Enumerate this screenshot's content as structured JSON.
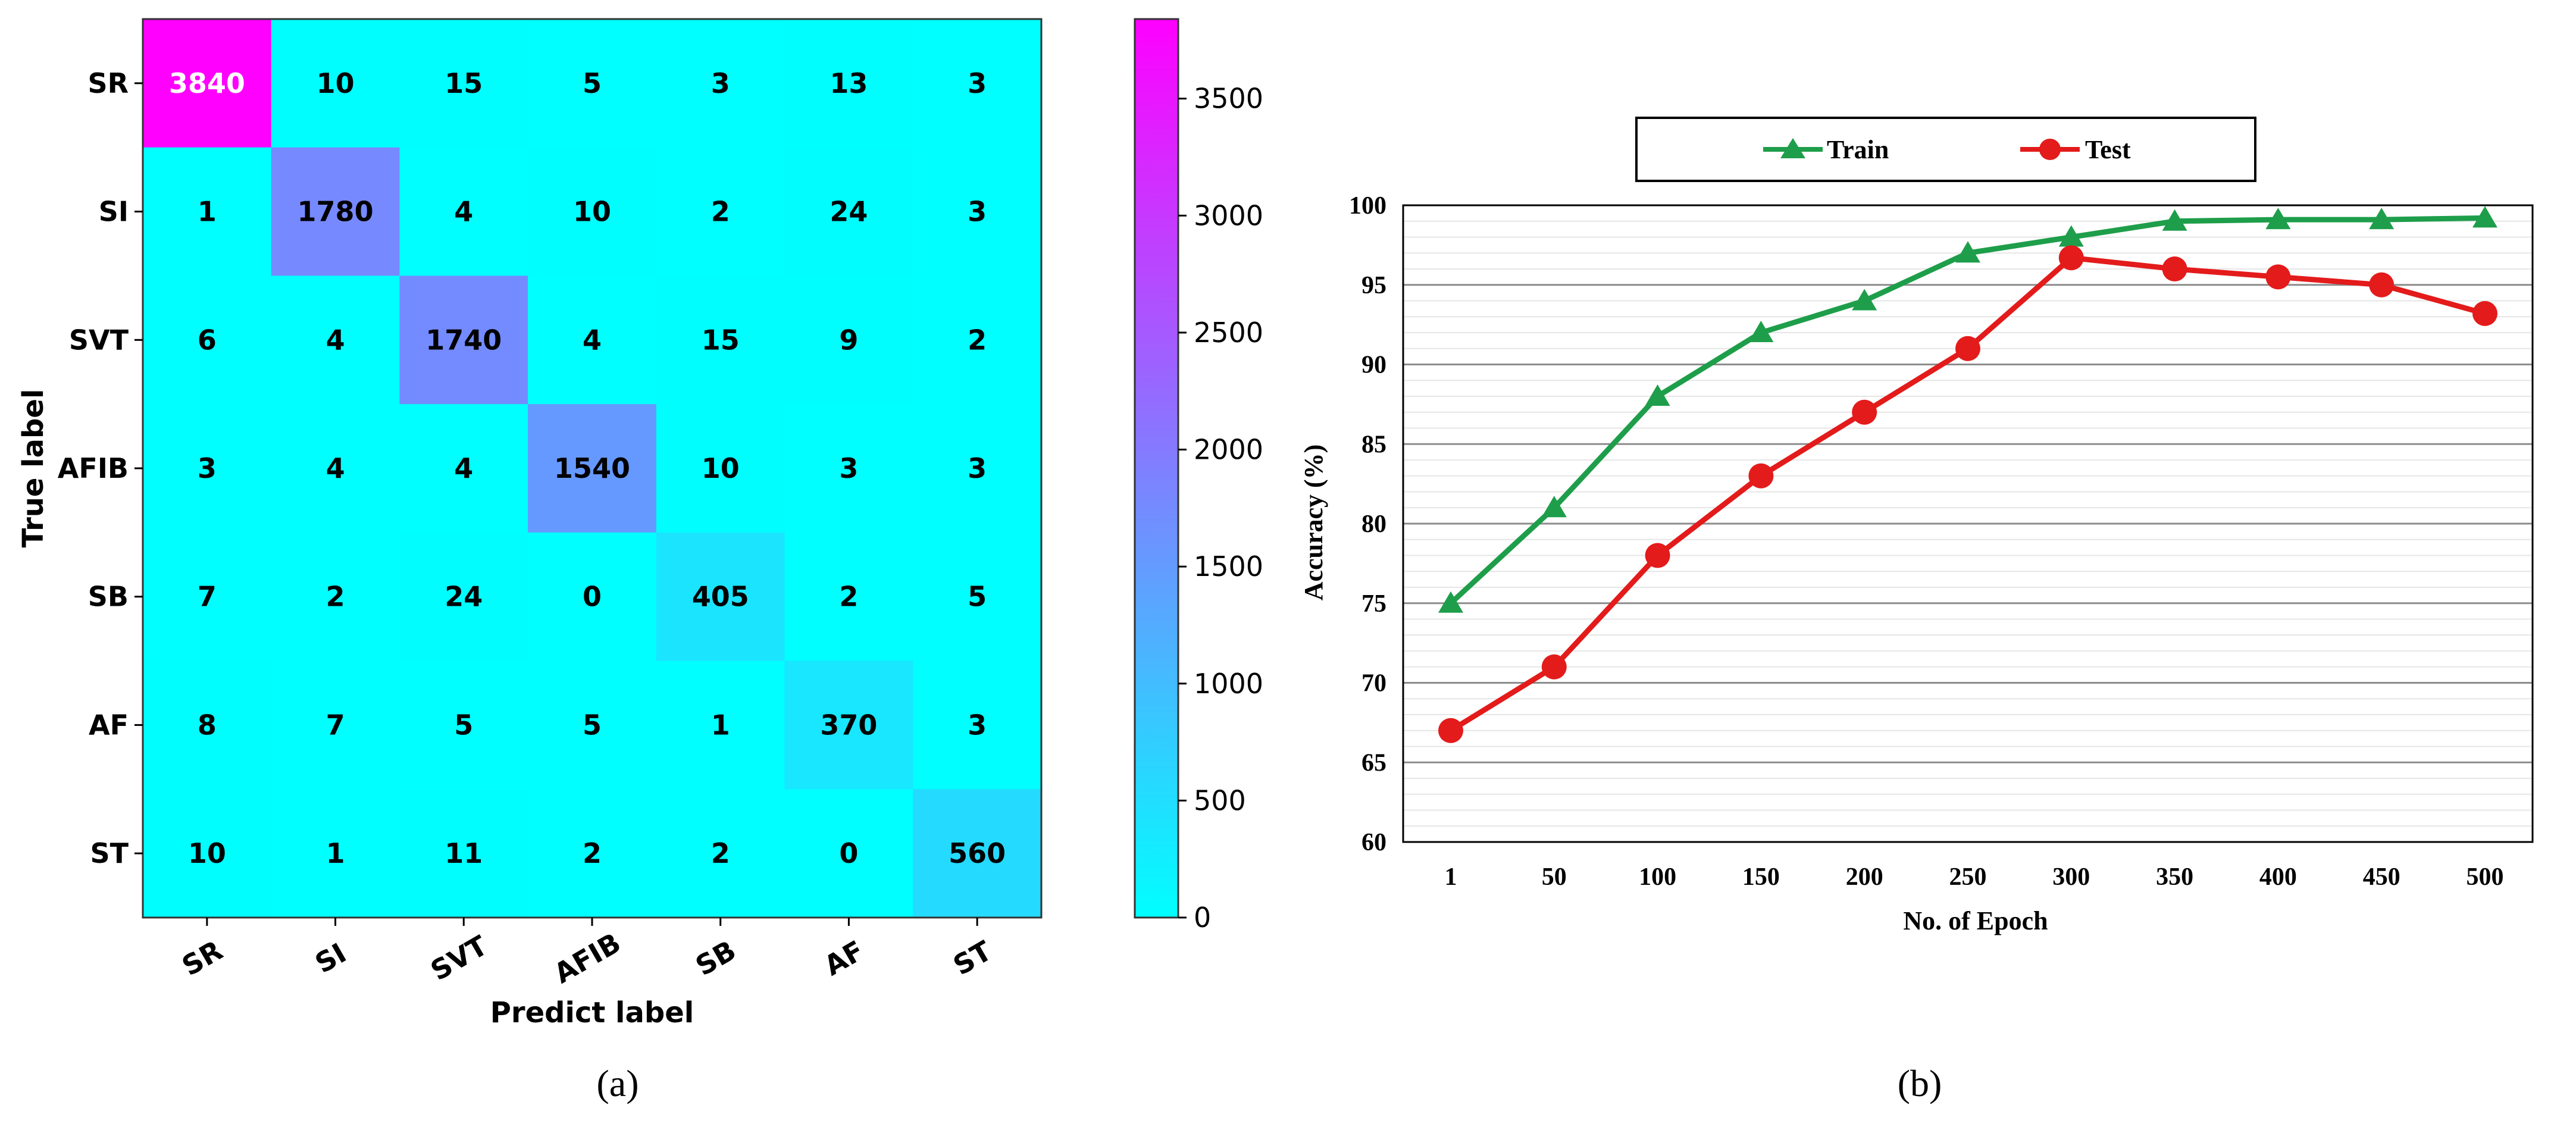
{
  "chart_data": [
    {
      "type": "heatmap",
      "caption": "(a)",
      "xlabel": "Predict label",
      "ylabel": "True label",
      "categories": [
        "SR",
        "SI",
        "SVT",
        "AFIB",
        "SB",
        "AF",
        "ST"
      ],
      "matrix": [
        [
          3840,
          10,
          15,
          5,
          3,
          13,
          3
        ],
        [
          1,
          1780,
          4,
          10,
          2,
          24,
          3
        ],
        [
          6,
          4,
          1740,
          4,
          15,
          9,
          2
        ],
        [
          3,
          4,
          4,
          1540,
          10,
          3,
          3
        ],
        [
          7,
          2,
          24,
          0,
          405,
          2,
          5
        ],
        [
          8,
          7,
          5,
          5,
          1,
          370,
          3
        ],
        [
          10,
          1,
          11,
          2,
          2,
          0,
          560
        ]
      ],
      "colorbar": {
        "min": 0,
        "max": 3840,
        "ticks": [
          0,
          500,
          1000,
          1500,
          2000,
          2500,
          3000,
          3500
        ],
        "colors": [
          "#00ffff",
          "#ff00ff"
        ]
      }
    },
    {
      "type": "line",
      "caption": "(b)",
      "xlabel": "No. of Epoch",
      "ylabel": "Accuracy (%)",
      "categories": [
        "1",
        "50",
        "100",
        "150",
        "200",
        "250",
        "300",
        "350",
        "400",
        "450",
        "500"
      ],
      "ylim": [
        60,
        100
      ],
      "yticks": [
        60,
        65,
        70,
        75,
        80,
        85,
        90,
        95,
        100
      ],
      "legend": "top",
      "grid": true,
      "series": [
        {
          "name": "Train",
          "color": "#1e9e4a",
          "marker": "triangle",
          "values": [
            75,
            81,
            88,
            92,
            94,
            97,
            98,
            99,
            99.1,
            99.1,
            99.2
          ]
        },
        {
          "name": "Test",
          "color": "#e31b1b",
          "marker": "circle",
          "values": [
            67,
            71,
            78,
            83,
            87,
            91,
            96.7,
            96,
            95.5,
            95,
            93.2
          ]
        }
      ]
    }
  ]
}
